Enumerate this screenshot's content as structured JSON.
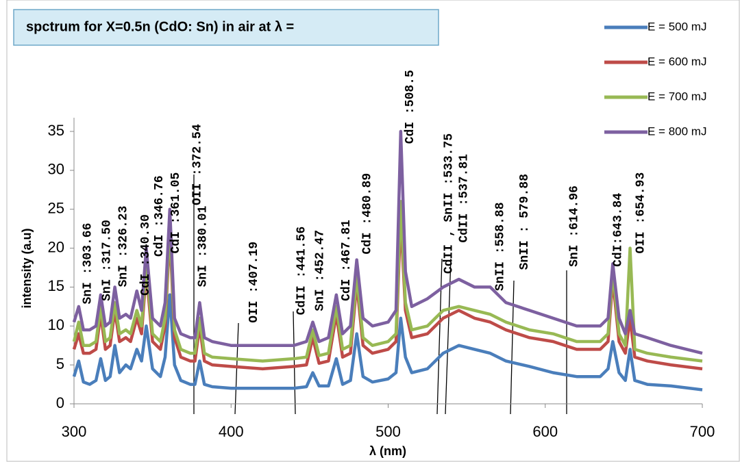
{
  "chart_data": {
    "type": "line",
    "title": "spctrum for X=0.5n (CdO: Sn) in air at λ =",
    "x_label": "λ (nm)",
    "y_label": "intensity (a.u)",
    "xlim": [
      300,
      700
    ],
    "xticks": [
      300,
      400,
      500,
      600,
      700
    ],
    "ylim": [
      0,
      35
    ],
    "yticks": [
      0,
      5,
      10,
      15,
      20,
      25,
      30,
      35
    ],
    "legend": "right",
    "x": [
      300,
      303,
      306,
      310,
      314,
      317,
      320,
      323,
      326,
      329,
      333,
      336,
      340,
      343,
      346,
      350,
      355,
      358,
      361,
      364,
      368,
      374,
      377,
      380,
      383,
      388,
      400,
      420,
      440,
      448,
      452,
      456,
      462,
      467,
      471,
      476,
      480,
      484,
      490,
      500,
      505,
      508,
      511,
      515,
      525,
      535,
      545,
      555,
      565,
      575,
      590,
      605,
      620,
      635,
      640,
      643,
      647,
      651,
      654,
      657,
      665,
      680,
      700
    ],
    "series": [
      {
        "name": "E = 500 mJ",
        "color": "#4a7ebb",
        "values": [
          3.5,
          5.5,
          2.8,
          2.5,
          3,
          5.8,
          3,
          3.5,
          7.5,
          4,
          5,
          4.5,
          7,
          5.5,
          10,
          4.5,
          3.5,
          6,
          14,
          5,
          3,
          2.5,
          2.5,
          5.5,
          2.5,
          2.2,
          2,
          2,
          2,
          2.2,
          4,
          2.3,
          2.3,
          5.8,
          2.5,
          3,
          9,
          3.5,
          2.8,
          3.2,
          4,
          11,
          6,
          4,
          4.5,
          6.5,
          7.5,
          7,
          6.5,
          5.5,
          4.8,
          4,
          3.5,
          3.5,
          4.5,
          8,
          4,
          3,
          7,
          3,
          2.5,
          2.3,
          1.8
        ]
      },
      {
        "name": "E = 600 mJ",
        "color": "#be4b48",
        "values": [
          7,
          9,
          6.5,
          6.5,
          7,
          11.5,
          7,
          7.5,
          12,
          8,
          8.5,
          8,
          11,
          9,
          17,
          8,
          7,
          10,
          22,
          8.5,
          6,
          5.5,
          5.5,
          10,
          5.5,
          5,
          4.8,
          4.5,
          4.8,
          5,
          8.5,
          5.2,
          5.5,
          11.5,
          6,
          6.5,
          15.5,
          7.5,
          6.5,
          7,
          8,
          24,
          12,
          8.5,
          9,
          11,
          12,
          11,
          10.5,
          9.5,
          8.5,
          8,
          7,
          7,
          8,
          16,
          8,
          6.5,
          11,
          6,
          5.5,
          5,
          4.5
        ]
      },
      {
        "name": "E = 700 mJ",
        "color": "#98b954",
        "values": [
          8,
          10.5,
          7.5,
          7.5,
          8,
          12.5,
          8,
          8.5,
          13,
          9,
          9.5,
          9,
          12,
          10,
          18,
          9,
          8,
          11,
          23,
          9.5,
          7,
          6.5,
          6.5,
          11,
          6.5,
          6,
          5.8,
          5.5,
          5.8,
          6,
          9.5,
          6.2,
          6.5,
          12.5,
          7,
          7.5,
          16.5,
          8.5,
          7.5,
          8,
          9,
          26,
          13,
          9.5,
          10,
          12,
          12.5,
          12,
          11.5,
          10.5,
          9.5,
          9,
          8,
          8,
          9,
          17,
          9,
          7.5,
          20,
          7,
          6.5,
          6,
          5.5
        ]
      },
      {
        "name": "E = 800 mJ",
        "color": "#7d60a0",
        "values": [
          10.5,
          12.5,
          9.5,
          9.5,
          10,
          14,
          10,
          10.5,
          15,
          11,
          11.5,
          11,
          14.5,
          12,
          20,
          11,
          10,
          13,
          25,
          11,
          9,
          8.5,
          8.5,
          13,
          8.5,
          8,
          7.5,
          7.5,
          7.5,
          8,
          10.5,
          8,
          8.5,
          14,
          9,
          10,
          18.5,
          11,
          10,
          10.5,
          12,
          35,
          17,
          12.5,
          13.5,
          15,
          16,
          15,
          15,
          13,
          12,
          11,
          10,
          10,
          11,
          18,
          11,
          9,
          12,
          9,
          8.5,
          7.5,
          6.5
        ]
      }
    ],
    "annotations": [
      {
        "text": "SnI :303.66",
        "x": 308.7,
        "y": 12.8
      },
      {
        "text": "SnI :317.50",
        "x": 320.9,
        "y": 13.2
      },
      {
        "text": "SnI :326.23",
        "x": 331.4,
        "y": 15
      },
      {
        "text": "CdI :340.30",
        "x": 345.4,
        "y": 13.9
      },
      {
        "text": "CdI :346.76",
        "x": 354.1,
        "y": 18.9
      },
      {
        "text": "CdI :361.05",
        "x": 364.6,
        "y": 19.3
      },
      {
        "text": "OII :372.54",
        "x": 378.5,
        "y": 25.5
      },
      {
        "text": "SnI :380.01",
        "x": 382,
        "y": 15
      },
      {
        "text": "OII :407.19",
        "x": 414.3,
        "y": 10.4
      },
      {
        "text": "CdII :441.56",
        "x": 444.8,
        "y": 11.4
      },
      {
        "text": "SnI :452.47",
        "x": 456.6,
        "y": 11.9
      },
      {
        "text": "CdI :467.81",
        "x": 473.2,
        "y": 13.2
      },
      {
        "text": "CdI :480.89",
        "x": 486.7,
        "y": 19.2
      },
      {
        "text": "CdI :508.5",
        "x": 513.8,
        "y": 33.4
      },
      {
        "text": "CdII , SnII :533.75",
        "x": 538.6,
        "y": 16.7
      },
      {
        "text": "CdII :537.81",
        "x": 548.2,
        "y": 20.7
      },
      {
        "text": "SnII :558.88",
        "x": 571.3,
        "y": 14.5
      },
      {
        "text": "SnII : 579.88",
        "x": 586.6,
        "y": 17.2
      },
      {
        "text": "SnI :614.96",
        "x": 618.4,
        "y": 17.6
      },
      {
        "text": "CdI:643.84",
        "x": 646.3,
        "y": 17.6
      },
      {
        "text": "OII :654.93",
        "x": 660.7,
        "y": 19.3
      }
    ]
  }
}
